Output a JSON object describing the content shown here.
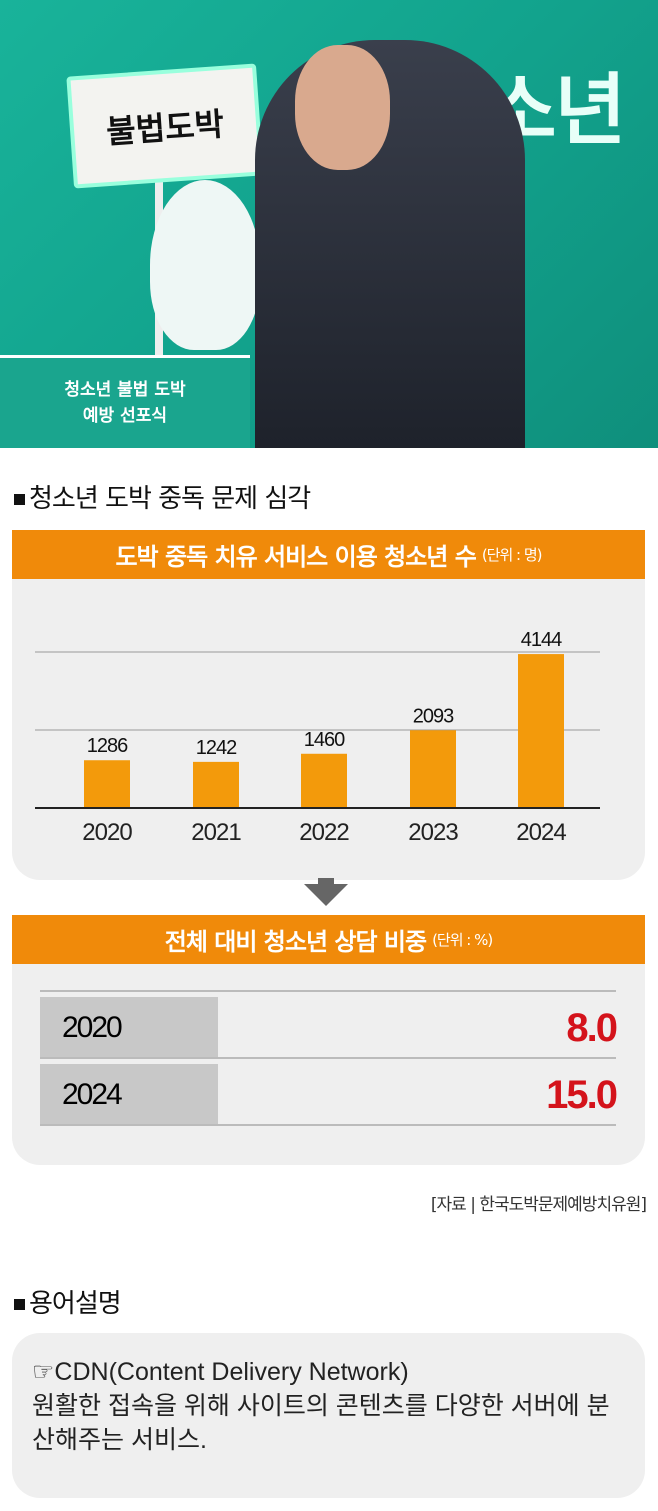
{
  "photo": {
    "backdrop_text": "청소년",
    "sign_text": "불법도박",
    "podium_text": "청소년 불법 도박\n예방 선포식"
  },
  "section1": {
    "title": "청소년 도박 중독 문제 심각"
  },
  "chart_data": [
    {
      "type": "bar",
      "title": "도박 중독 치유 서비스 이용 청소년 수",
      "unit": "(단위 : 명)",
      "categories": [
        "2020",
        "2021",
        "2022",
        "2023",
        "2024"
      ],
      "values": [
        1286,
        1242,
        1460,
        2093,
        4144
      ],
      "ylim": [
        0,
        4200
      ],
      "grid": true,
      "bar_color": "#f39a0b",
      "header_color": "#f08a0a"
    },
    {
      "type": "table",
      "title": "전체 대비 청소년 상담 비중",
      "unit": "(단위 : %)",
      "rows": [
        {
          "year": "2020",
          "value": "8.0"
        },
        {
          "year": "2024",
          "value": "15.0"
        }
      ],
      "value_color": "#d4131b"
    }
  ],
  "source": "[자료 | 한국도박문제예방치유원]",
  "section2": {
    "title": "용어설명"
  },
  "glossary": {
    "icon": "pointing-hand-icon",
    "term": "☞CDN(Content Delivery Network)",
    "definition": "원활한 접속을 위해 사이트의 콘텐츠를 다양한 서버에 분산해주는 서비스."
  }
}
